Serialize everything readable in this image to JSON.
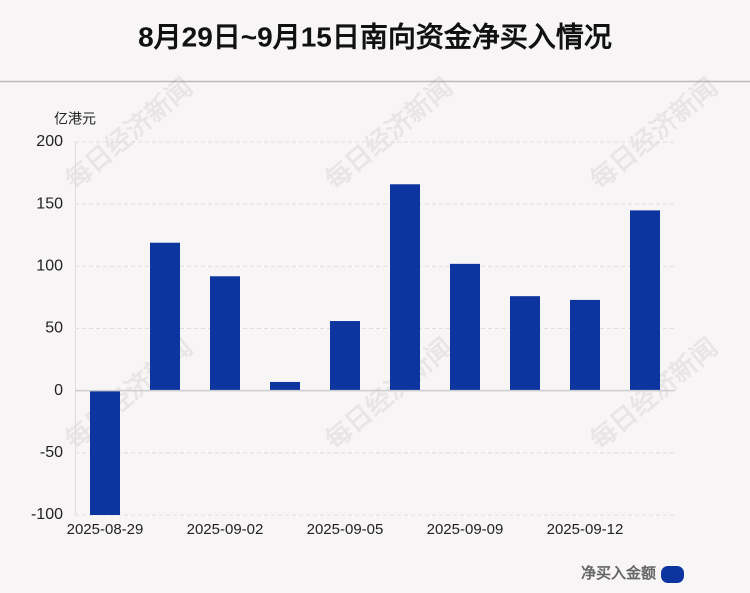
{
  "chart_data": {
    "type": "bar",
    "title": "8月29日~9月15日南向资金净买入情况",
    "y_axis_label": "亿港元",
    "watermark": "每日经济新闻",
    "categories": [
      "2025-08-29",
      null,
      "2025-09-02",
      null,
      "2025-09-05",
      null,
      "2025-09-09",
      null,
      "2025-09-12",
      null
    ],
    "series": [
      {
        "name": "净买入金额",
        "color": "#0c35a0",
        "values": [
          -100,
          119,
          92,
          7,
          56,
          166,
          102,
          76,
          73,
          145
        ]
      }
    ],
    "ylim": [
      -100,
      200
    ],
    "yticks": [
      -100,
      -50,
      0,
      50,
      100,
      150,
      200
    ],
    "grid": true
  }
}
